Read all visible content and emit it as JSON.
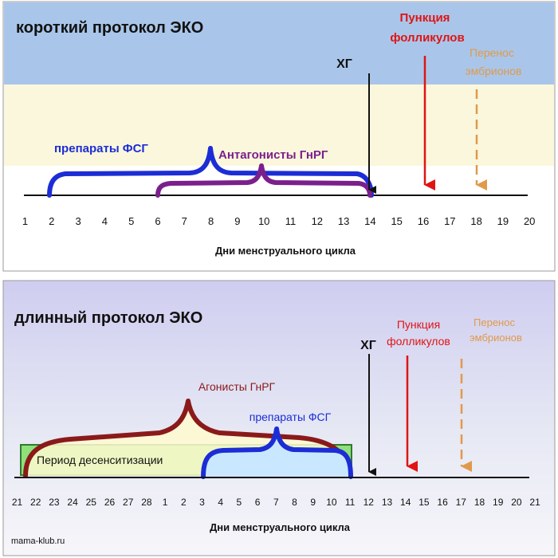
{
  "short_protocol": {
    "title": "короткий протокол ЭКО",
    "fsh_label": "препараты ФСГ",
    "antagonists_label": "Антагонисты ГнРГ",
    "hcg_label": "ХГ",
    "puncture_label_line1": "Пункция",
    "puncture_label_line2": "фолликулов",
    "transfer_label_line1": "Перенос",
    "transfer_label_line2": "эмбрионов",
    "axis_title": "Дни менструального  цикла",
    "ticks": [
      "1",
      "2",
      "3",
      "4",
      "5",
      "6",
      "7",
      "8",
      "9",
      "10",
      "11",
      "12",
      "13",
      "14",
      "15",
      "16",
      "17",
      "18",
      "19",
      "20"
    ]
  },
  "long_protocol": {
    "title": "длинный протокол ЭКО",
    "agonists_label": "Агонисты ГнРГ",
    "fsh_label": "препараты ФСГ",
    "desensitization_label": "Период десенситизации",
    "hcg_label": "ХГ",
    "puncture_label_line1": "Пункция",
    "puncture_label_line2": "фолликулов",
    "transfer_label_line1": "Перенос",
    "transfer_label_line2": "эмбрионов",
    "axis_title": "Дни менструального цикла",
    "ticks": [
      "21",
      "22",
      "23",
      "24",
      "25",
      "26",
      "27",
      "28",
      "1",
      "2",
      "3",
      "4",
      "5",
      "6",
      "7",
      "8",
      "9",
      "10",
      "11",
      "12",
      "13",
      "14",
      "15",
      "16",
      "17",
      "18",
      "19",
      "20",
      "21"
    ]
  },
  "footer": {
    "site": "mama-klub.ru"
  },
  "colors": {
    "fsh": "#1c2dd6",
    "antagonist": "#7b1f8c",
    "agonist": "#8a1a1a",
    "puncture": "#e01414",
    "transfer": "#e09a4a",
    "hcg": "#111111",
    "title_band": "#a9c6ea",
    "desensitization_fill": "#8fe07a",
    "desensitization_stroke": "#2f7a2f"
  }
}
